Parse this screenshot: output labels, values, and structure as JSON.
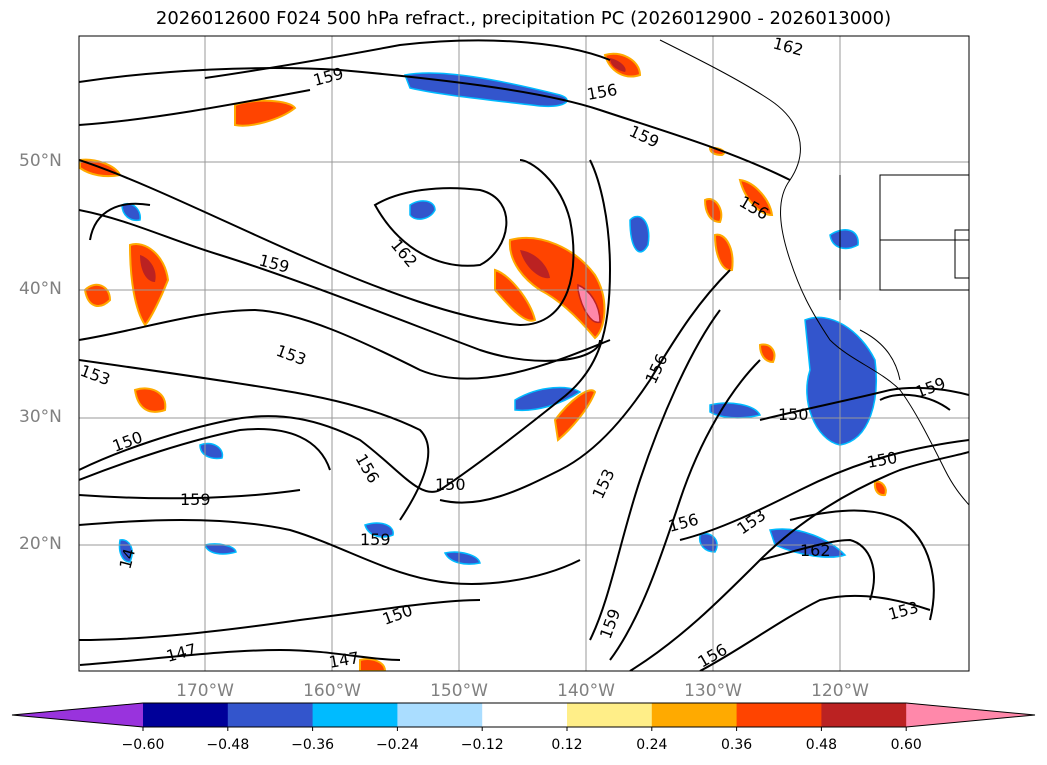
{
  "title": "2026012600 F024 500 hPa refract., precipitation PC (2026012900 - 2026013000)",
  "lat_labels": [
    "50°N",
    "40°N",
    "30°N",
    "20°N"
  ],
  "lon_labels": [
    "170°W",
    "160°W",
    "150°W",
    "140°W",
    "130°W",
    "120°W"
  ],
  "contour_labels": [
    "162",
    "159",
    "156",
    "159",
    "156",
    "159",
    "162",
    "153",
    "153",
    "150",
    "156",
    "150",
    "159",
    "156",
    "150",
    "153",
    "156",
    "153",
    "162",
    "150",
    "159",
    "150",
    "147",
    "147",
    "159",
    "14",
    "156",
    "159",
    "153"
  ],
  "colorbar": {
    "colors": [
      "#9933dd",
      "#000099",
      "#3355cc",
      "#00bbff",
      "#aaddff",
      "#ffffff",
      "#ffee88",
      "#ffaa00",
      "#ff4400",
      "#bb2222",
      "#ff88aa"
    ],
    "ticks": [
      "−0.60",
      "−0.48",
      "−0.36",
      "−0.24",
      "−0.12",
      "0.12",
      "0.24",
      "0.36",
      "0.48",
      "0.60"
    ]
  }
}
